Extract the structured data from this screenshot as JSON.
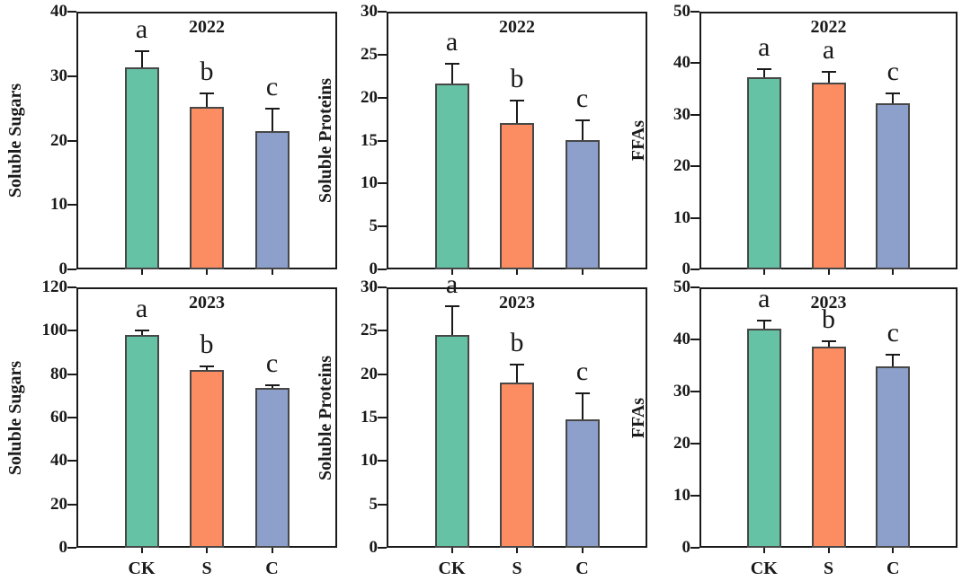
{
  "figure": {
    "description": "Six-panel bar chart figure: Soluble Sugars, Soluble Proteins and FFAs for treatments CK, S, C in 2022 (top row) and 2023 (bottom row), with SD error bars and significance letters",
    "background": "#ffffff"
  },
  "colors": {
    "bar_fill": [
      "#66c2a5",
      "#fc8d62",
      "#8da0cb"
    ],
    "bar_edge": "#474747",
    "axis": "#1a1a1a",
    "error_bar": "#1a1a1a",
    "text": "#1a1a1a"
  },
  "categories": [
    "CK",
    "S",
    "C"
  ],
  "chart_data": [
    {
      "type": "bar",
      "panel": "top-left",
      "year": "2022",
      "ylabel": "Soluble Sugars",
      "ylim": [
        0,
        40
      ],
      "yticks": [
        0,
        10,
        20,
        30,
        40
      ],
      "categories": [
        "CK",
        "S",
        "C"
      ],
      "values": [
        31.3,
        25.2,
        21.5
      ],
      "errors": [
        2.5,
        2.1,
        3.5
      ],
      "sig_letters": [
        "a",
        "b",
        "c"
      ],
      "show_x_labels": false,
      "grid": false,
      "legend": "none"
    },
    {
      "type": "bar",
      "panel": "top-middle",
      "year": "2022",
      "ylabel": "Soluble Proteins",
      "ylim": [
        0,
        30
      ],
      "yticks": [
        0,
        5,
        10,
        15,
        20,
        25,
        30
      ],
      "categories": [
        "CK",
        "S",
        "C"
      ],
      "values": [
        21.6,
        17.0,
        15.1
      ],
      "errors": [
        2.3,
        2.6,
        2.2
      ],
      "sig_letters": [
        "a",
        "b",
        "c"
      ],
      "show_x_labels": false,
      "grid": false,
      "legend": "none"
    },
    {
      "type": "bar",
      "panel": "top-right",
      "year": "2022",
      "ylabel": "FFAs",
      "ylim": [
        0,
        50
      ],
      "yticks": [
        0,
        10,
        20,
        30,
        40,
        50
      ],
      "categories": [
        "CK",
        "S",
        "C"
      ],
      "values": [
        37.3,
        36.3,
        32.3
      ],
      "errors": [
        1.6,
        2.0,
        1.9
      ],
      "sig_letters": [
        "a",
        "a",
        "c"
      ],
      "show_x_labels": false,
      "grid": false,
      "legend": "none"
    },
    {
      "type": "bar",
      "panel": "bottom-left",
      "year": "2023",
      "ylabel": "Soluble Sugars",
      "ylim": [
        0,
        120
      ],
      "yticks": [
        0,
        20,
        40,
        60,
        80,
        100,
        120
      ],
      "categories": [
        "CK",
        "S",
        "C"
      ],
      "values": [
        98.0,
        82.0,
        73.7
      ],
      "errors": [
        2.0,
        1.5,
        1.3
      ],
      "sig_letters": [
        "a",
        "b",
        "c"
      ],
      "show_x_labels": true,
      "grid": false,
      "legend": "none"
    },
    {
      "type": "bar",
      "panel": "bottom-middle",
      "year": "2023",
      "ylabel": "Soluble Proteins",
      "ylim": [
        0,
        30
      ],
      "yticks": [
        0,
        5,
        10,
        15,
        20,
        25,
        30
      ],
      "categories": [
        "CK",
        "S",
        "C"
      ],
      "values": [
        24.5,
        19.0,
        14.8
      ],
      "errors": [
        3.3,
        2.1,
        3.0
      ],
      "sig_letters": [
        "a",
        "b",
        "c"
      ],
      "show_x_labels": true,
      "grid": false,
      "legend": "none"
    },
    {
      "type": "bar",
      "panel": "bottom-right",
      "year": "2023",
      "ylabel": "FFAs",
      "ylim": [
        0,
        50
      ],
      "yticks": [
        0,
        10,
        20,
        30,
        40,
        50
      ],
      "categories": [
        "CK",
        "S",
        "C"
      ],
      "values": [
        42.1,
        38.6,
        34.8
      ],
      "errors": [
        1.5,
        1.0,
        2.2
      ],
      "sig_letters": [
        "a",
        "b",
        "c"
      ],
      "show_x_labels": true,
      "grid": false,
      "legend": "none"
    }
  ]
}
